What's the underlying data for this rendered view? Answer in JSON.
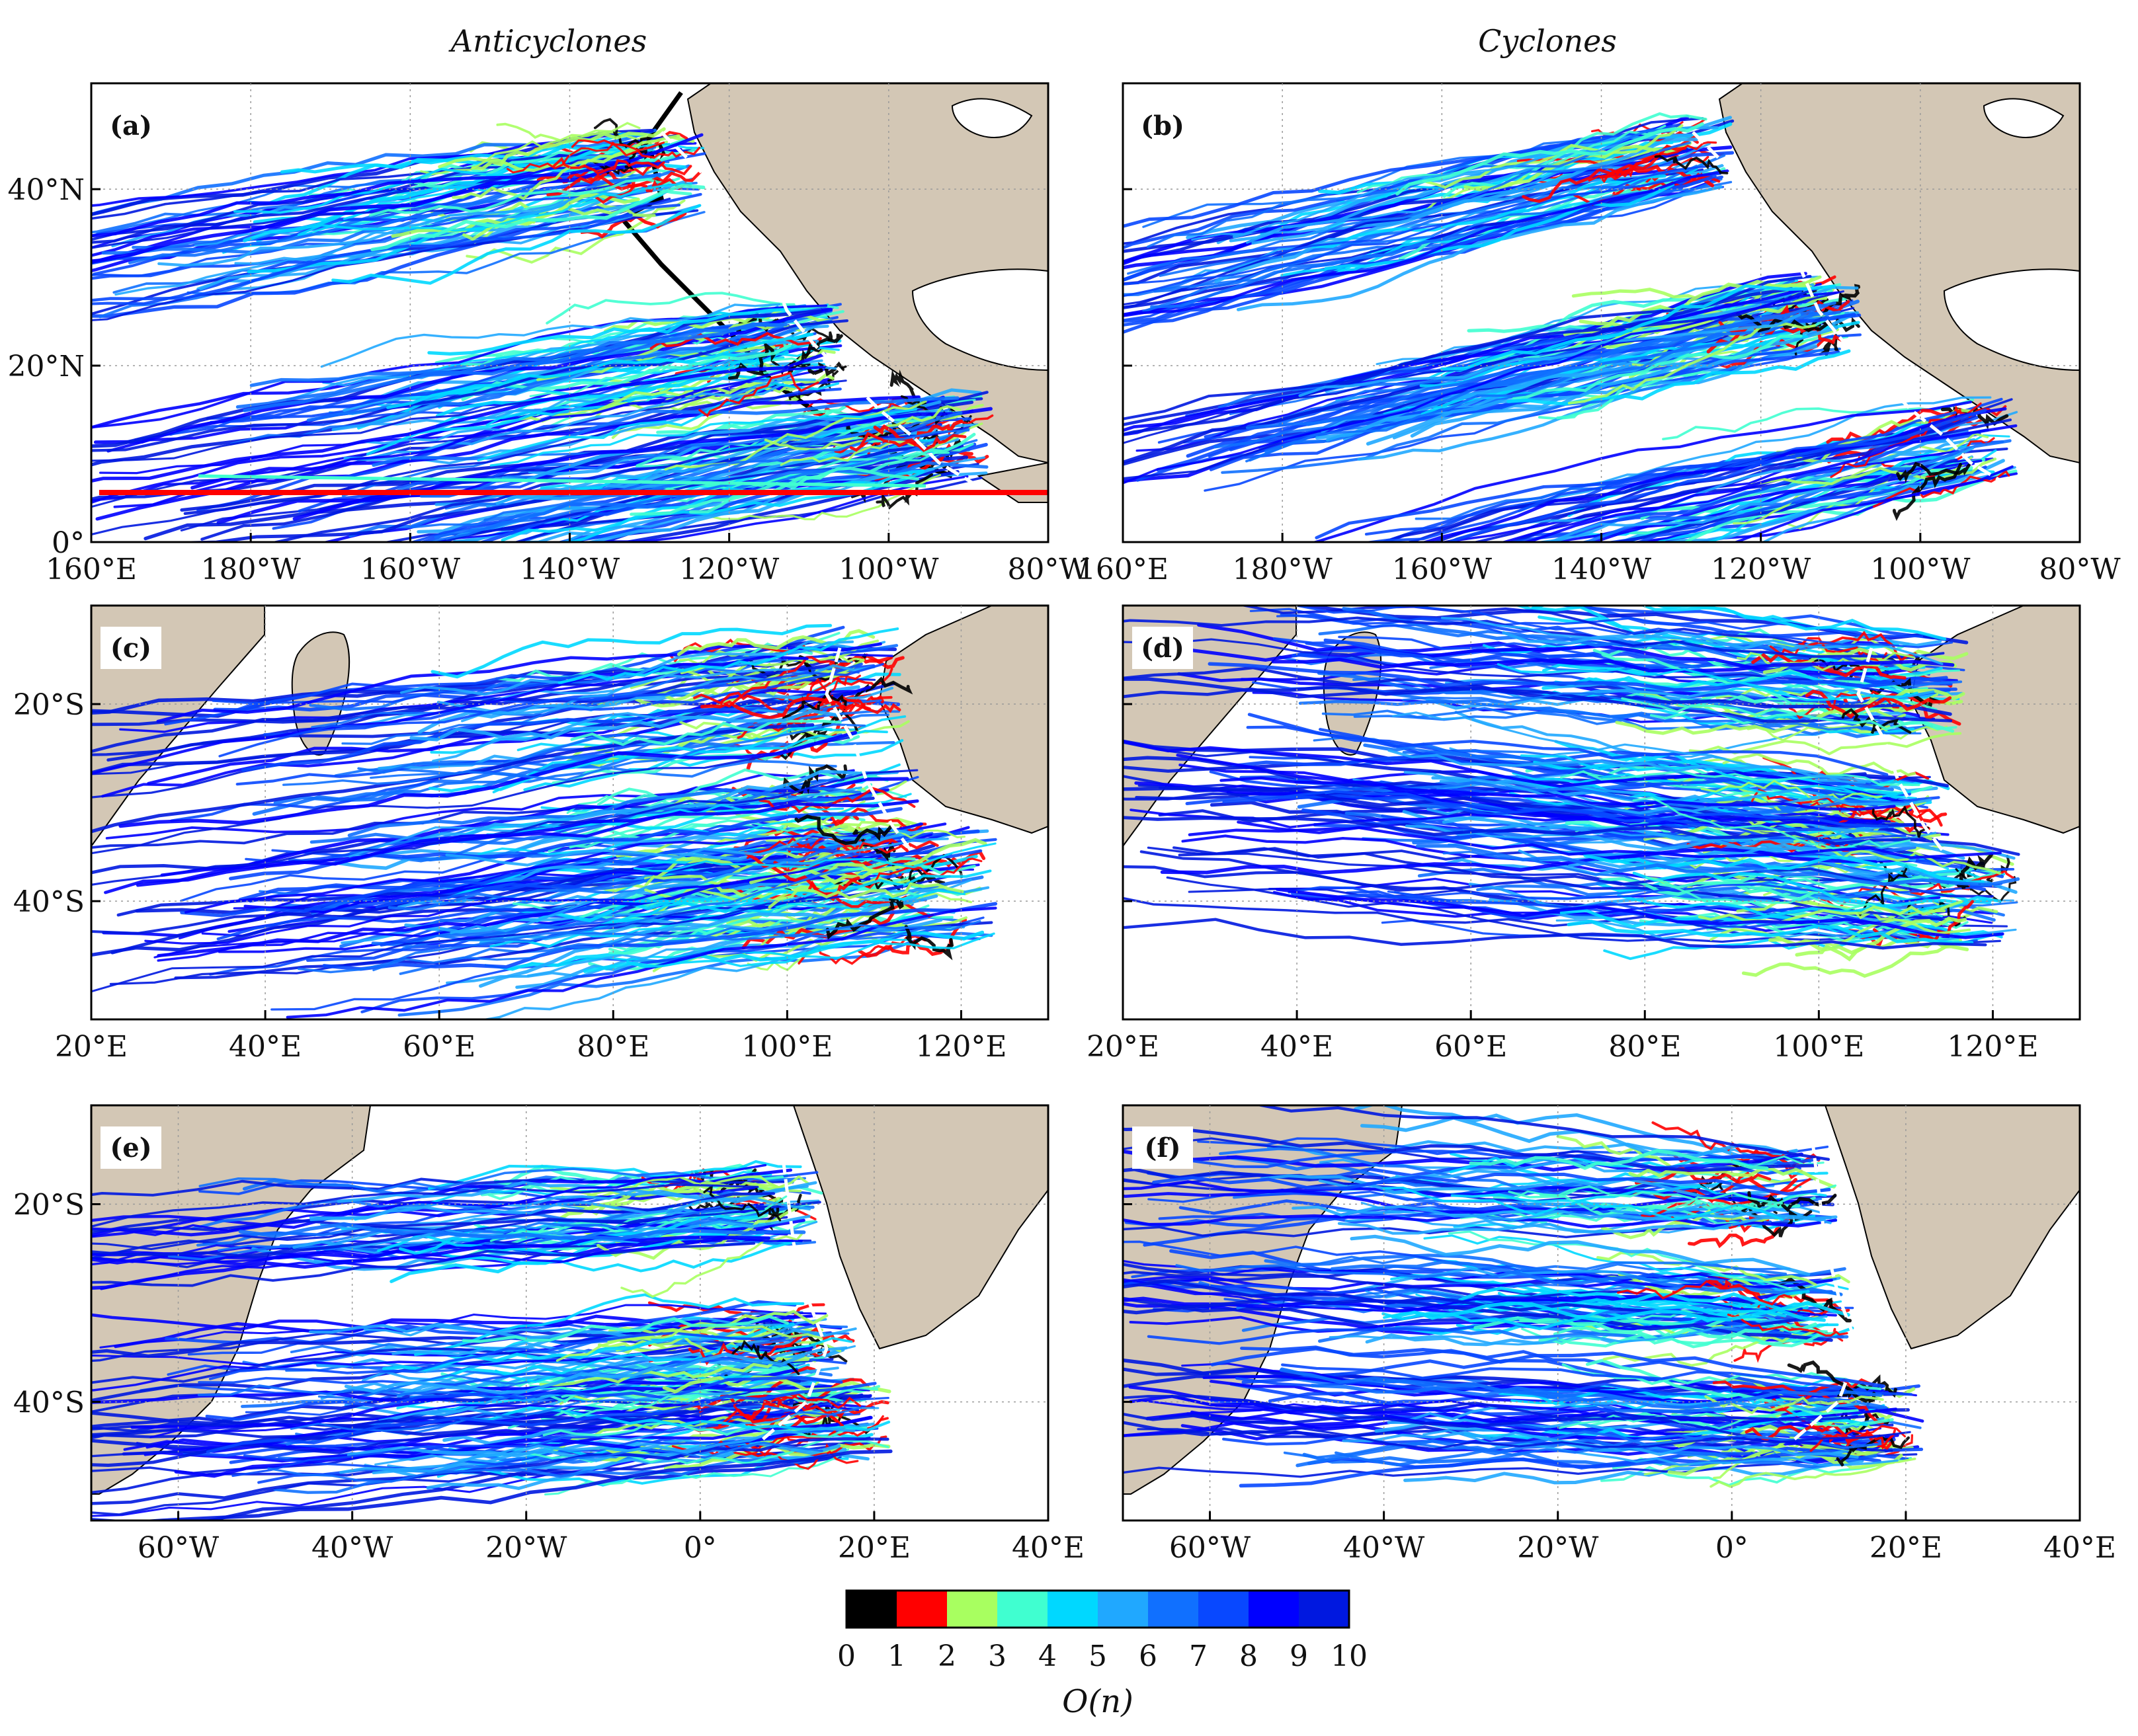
{
  "column_titles": [
    "Anticyclones",
    "Cyclones"
  ],
  "colorbar": {
    "ticks": [
      "0",
      "1",
      "2",
      "3",
      "4",
      "5",
      "6",
      "7",
      "8",
      "9",
      "10"
    ],
    "colors": [
      "#000000",
      "#ff0000",
      "#a8ff60",
      "#40ffd0",
      "#00d8ff",
      "#20a8ff",
      "#1070ff",
      "#0848ff",
      "#0000ff",
      "#0018e0"
    ],
    "label": "O(n)"
  },
  "land_color": "#d3c7b5",
  "chart_data": [
    {
      "type": "map",
      "panel_label": "(a)",
      "lon_range": [
        160,
        280
      ],
      "lat_range": [
        0,
        52
      ],
      "x_ticks": [
        160,
        180,
        200,
        220,
        240,
        260,
        280
      ],
      "x_tick_labels": [
        "160°E",
        "180°W",
        "160°W",
        "140°W",
        "120°W",
        "100°W",
        "80°W"
      ],
      "y_ticks": [
        0,
        20,
        40
      ],
      "y_tick_labels": [
        "0°",
        "20°N",
        "40°N"
      ]
    },
    {
      "type": "map",
      "panel_label": "(b)",
      "lon_range": [
        160,
        280
      ],
      "lat_range": [
        0,
        52
      ],
      "x_ticks": [
        160,
        180,
        200,
        220,
        240,
        260,
        280
      ],
      "x_tick_labels": [
        "160°E",
        "180°W",
        "160°W",
        "140°W",
        "120°W",
        "100°W",
        "80°W"
      ],
      "y_ticks": [
        0,
        20,
        40
      ],
      "y_tick_labels": [
        "",
        "",
        ""
      ]
    },
    {
      "type": "map",
      "panel_label": "(c)",
      "lon_range": [
        20,
        130
      ],
      "lat_range": [
        -52,
        -10
      ],
      "x_ticks": [
        20,
        40,
        60,
        80,
        100,
        120
      ],
      "x_tick_labels": [
        "20°E",
        "40°E",
        "60°E",
        "80°E",
        "100°E",
        "120°E"
      ],
      "y_ticks": [
        -20,
        -40
      ],
      "y_tick_labels": [
        "20°S",
        "40°S"
      ]
    },
    {
      "type": "map",
      "panel_label": "(d)",
      "lon_range": [
        20,
        130
      ],
      "lat_range": [
        -52,
        -10
      ],
      "x_ticks": [
        20,
        40,
        60,
        80,
        100,
        120
      ],
      "x_tick_labels": [
        "20°E",
        "40°E",
        "60°E",
        "80°E",
        "100°E",
        "120°E"
      ],
      "y_ticks": [
        -20,
        -40
      ],
      "y_tick_labels": [
        "",
        ""
      ]
    },
    {
      "type": "map",
      "panel_label": "(e)",
      "lon_range": [
        -70,
        40
      ],
      "lat_range": [
        -52,
        -10
      ],
      "x_ticks": [
        -60,
        -40,
        -20,
        0,
        20,
        40
      ],
      "x_tick_labels": [
        "60°W",
        "40°W",
        "20°W",
        "0°",
        "20°E",
        "40°E"
      ],
      "y_ticks": [
        -20,
        -40
      ],
      "y_tick_labels": [
        "20°S",
        "40°S"
      ]
    },
    {
      "type": "map",
      "panel_label": "(f)",
      "lon_range": [
        -70,
        40
      ],
      "lat_range": [
        -52,
        -10
      ],
      "x_ticks": [
        -60,
        -40,
        -20,
        0,
        20,
        40
      ],
      "x_tick_labels": [
        "60°W",
        "40°W",
        "20°W",
        "0°",
        "20°E",
        "40°E"
      ],
      "y_ticks": [
        -20,
        -40
      ],
      "y_tick_labels": [
        "",
        ""
      ]
    }
  ]
}
